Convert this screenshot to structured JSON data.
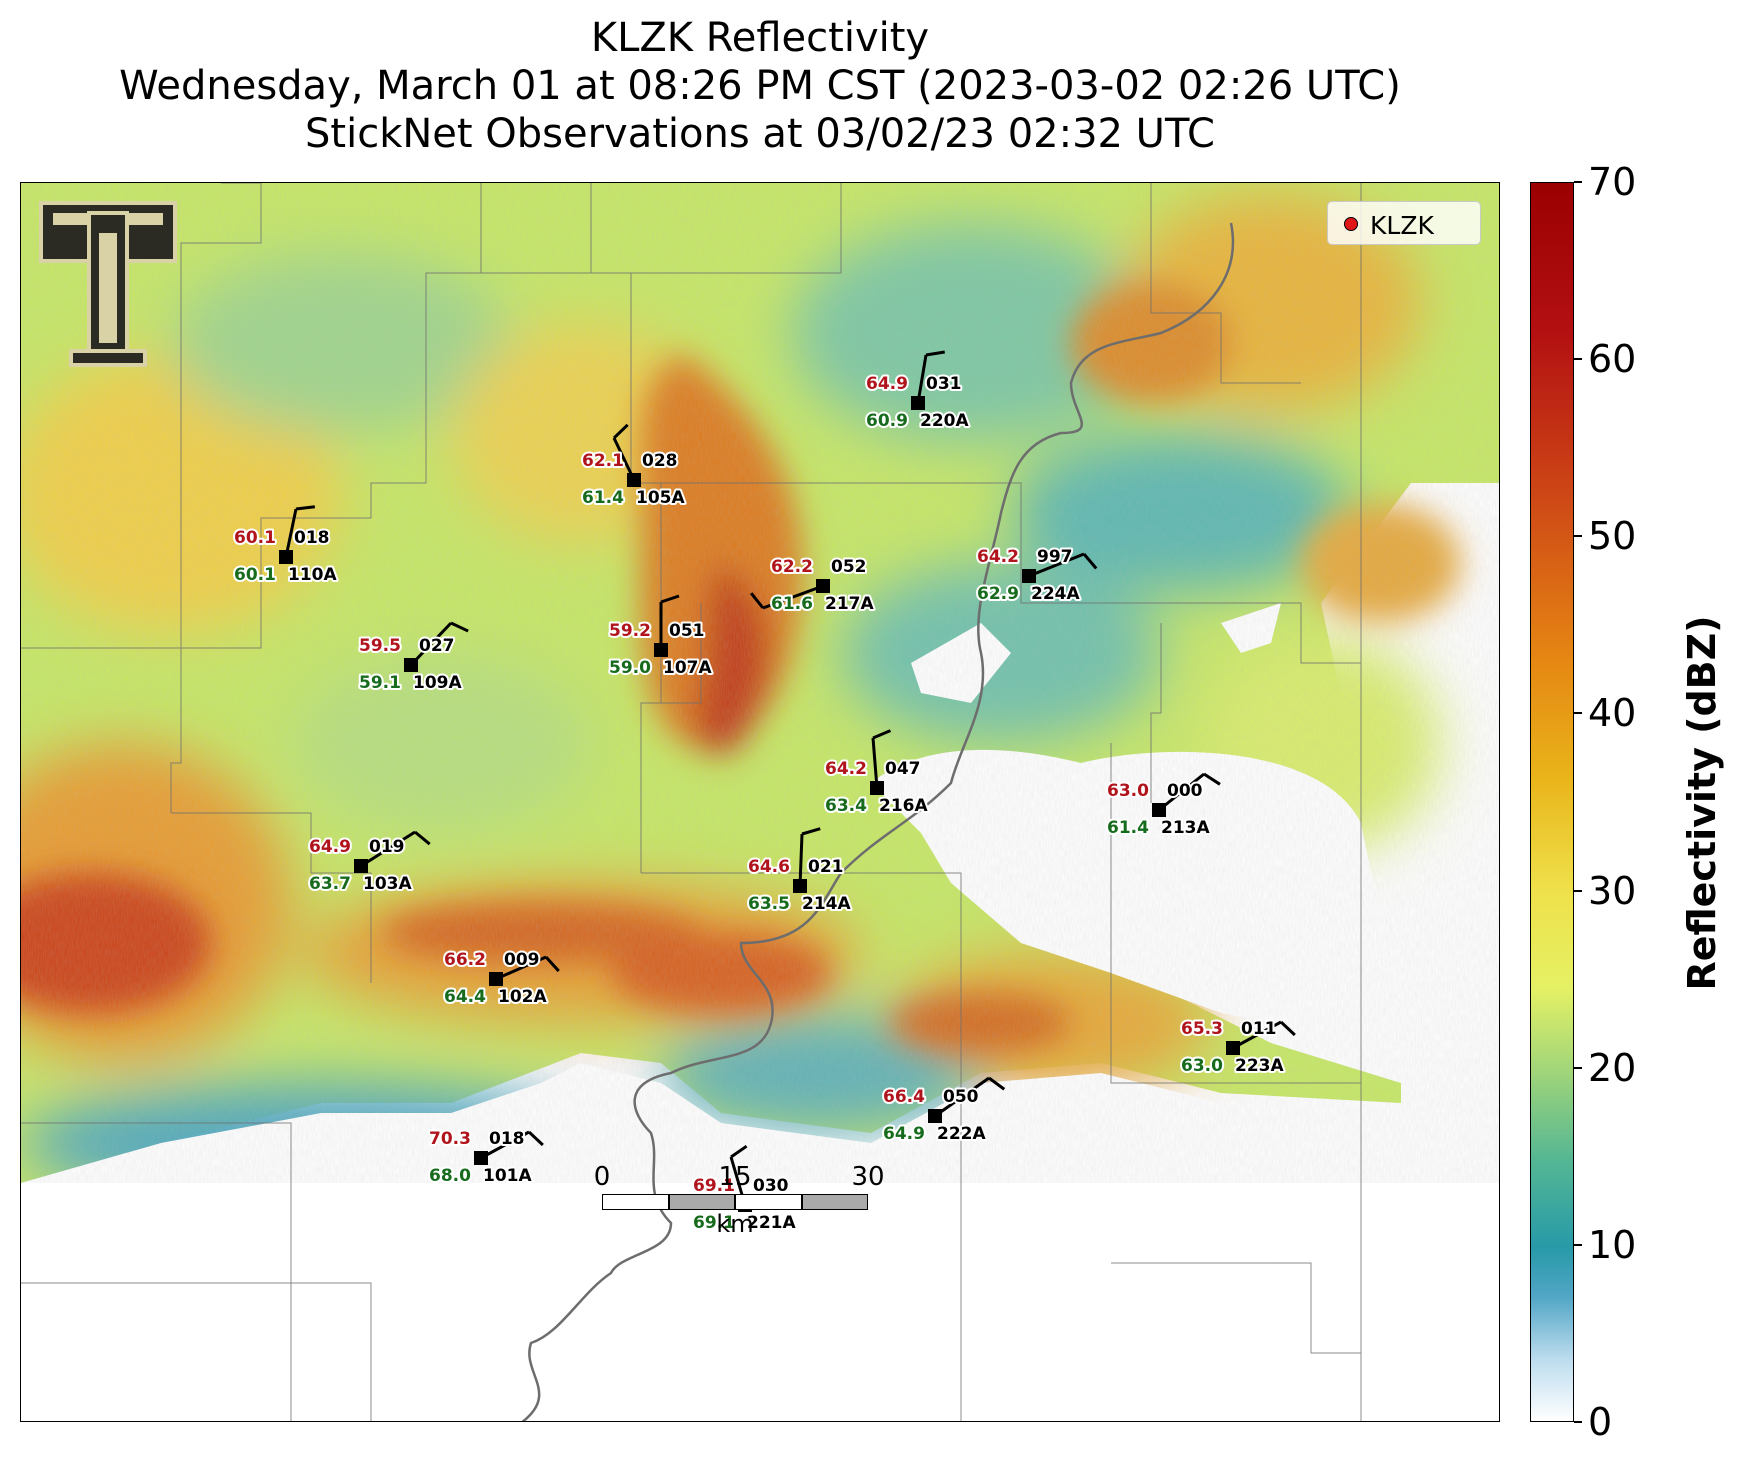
{
  "title": {
    "line1": "KLZK Reflectivity",
    "line2": "Wednesday, March 01 at 08:26 PM CST (2023-03-02 02:26 UTC)",
    "line3": "StickNet Observations at 03/02/23 02:32 UTC"
  },
  "legend": {
    "label": "KLZK",
    "marker_color": "#e01818"
  },
  "scalebar": {
    "ticks": [
      "0",
      "15",
      "30"
    ],
    "unit": "km"
  },
  "colorbar": {
    "label": "Reflectivity (dBZ)",
    "ticks": [
      "70",
      "60",
      "50",
      "40",
      "30",
      "20",
      "10",
      "0"
    ],
    "min": 0,
    "max": 70
  },
  "colors": {
    "temperature": "#b0141c",
    "dewpoint": "#176b1d",
    "station": "#000000"
  },
  "stations": [
    {
      "id": "220A",
      "temp": "64.9",
      "dew": "60.9",
      "dir": "031"
    },
    {
      "id": "105A",
      "temp": "62.1",
      "dew": "61.4",
      "dir": "028"
    },
    {
      "id": "110A",
      "temp": "60.1",
      "dew": "60.1",
      "dir": "018"
    },
    {
      "id": "217A",
      "temp": "62.2",
      "dew": "61.6",
      "dir": "052"
    },
    {
      "id": "224A",
      "temp": "64.2",
      "dew": "62.9",
      "dir": "997"
    },
    {
      "id": "109A",
      "temp": "59.5",
      "dew": "59.1",
      "dir": "027"
    },
    {
      "id": "107A",
      "temp": "59.2",
      "dew": "59.0",
      "dir": "051"
    },
    {
      "id": "216A",
      "temp": "64.2",
      "dew": "63.4",
      "dir": "047"
    },
    {
      "id": "213A",
      "temp": "63.0",
      "dew": "61.4",
      "dir": "000"
    },
    {
      "id": "103A",
      "temp": "64.9",
      "dew": "63.7",
      "dir": "019"
    },
    {
      "id": "214A",
      "temp": "64.6",
      "dew": "63.5",
      "dir": "021"
    },
    {
      "id": "102A",
      "temp": "66.2",
      "dew": "64.4",
      "dir": "009"
    },
    {
      "id": "223A",
      "temp": "65.3",
      "dew": "63.0",
      "dir": "011"
    },
    {
      "id": "222A",
      "temp": "66.4",
      "dew": "64.9",
      "dir": "050"
    },
    {
      "id": "101A",
      "temp": "70.3",
      "dew": "68.0",
      "dir": "018"
    },
    {
      "id": "221A",
      "temp": "69.1",
      "dew": "69.1",
      "dir": "030"
    }
  ]
}
